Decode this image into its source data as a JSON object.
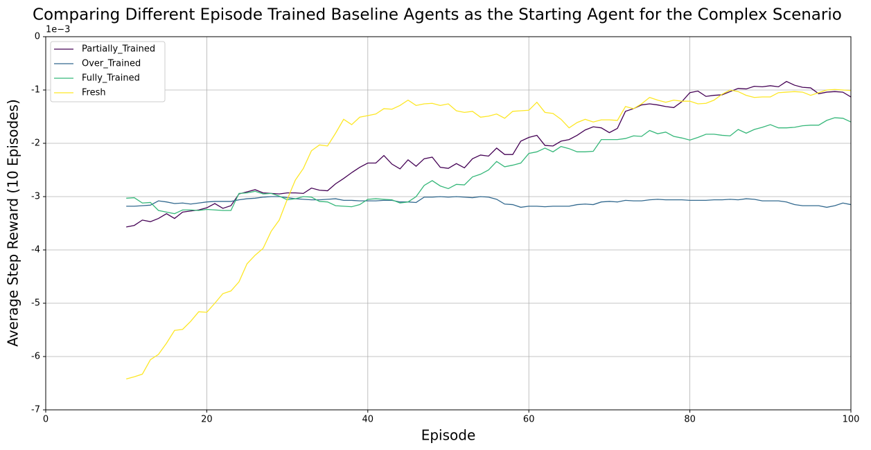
{
  "chart_data": {
    "type": "line",
    "title": "Comparing Different Episode Trained Baseline Agents as the Starting Agent for the Complex Scenario",
    "x_label": "Episode",
    "y_label": "Average Step Reward (10 Episodes)",
    "y_offset_label": "1e−3",
    "x": [
      10,
      11,
      12,
      13,
      14,
      15,
      16,
      17,
      18,
      19,
      20,
      21,
      22,
      23,
      24,
      25,
      26,
      27,
      28,
      29,
      30,
      31,
      32,
      33,
      34,
      35,
      36,
      37,
      38,
      39,
      40,
      41,
      42,
      43,
      44,
      45,
      46,
      47,
      48,
      49,
      50,
      51,
      52,
      53,
      54,
      55,
      56,
      57,
      58,
      59,
      60,
      61,
      62,
      63,
      64,
      65,
      66,
      67,
      68,
      69,
      70,
      71,
      72,
      73,
      74,
      75,
      76,
      77,
      78,
      79,
      80,
      81,
      82,
      83,
      84,
      85,
      86,
      87,
      88,
      89,
      90,
      91,
      92,
      93,
      94,
      95,
      96,
      97,
      98,
      99,
      100
    ],
    "series": [
      {
        "name": "Partially_Trained",
        "color": "#440154",
        "values": [
          -3.57,
          -3.54,
          -3.44,
          -3.47,
          -3.41,
          -3.32,
          -3.41,
          -3.29,
          -3.27,
          -3.25,
          -3.21,
          -3.13,
          -3.22,
          -3.17,
          -2.95,
          -2.91,
          -2.87,
          -2.93,
          -2.94,
          -2.95,
          -2.93,
          -2.93,
          -2.94,
          -2.84,
          -2.88,
          -2.89,
          -2.76,
          -2.66,
          -2.55,
          -2.45,
          -2.37,
          -2.37,
          -2.23,
          -2.39,
          -2.48,
          -2.31,
          -2.43,
          -2.29,
          -2.26,
          -2.45,
          -2.47,
          -2.38,
          -2.46,
          -2.29,
          -2.22,
          -2.24,
          -2.09,
          -2.21,
          -2.21,
          -1.96,
          -1.89,
          -1.85,
          -2.04,
          -2.05,
          -1.96,
          -1.93,
          -1.85,
          -1.75,
          -1.69,
          -1.71,
          -1.8,
          -1.72,
          -1.4,
          -1.35,
          -1.28,
          -1.26,
          -1.28,
          -1.31,
          -1.33,
          -1.22,
          -1.05,
          -1.02,
          -1.12,
          -1.1,
          -1.09,
          -1.03,
          -0.97,
          -0.98,
          -0.93,
          -0.94,
          -0.92,
          -0.94,
          -0.84,
          -0.91,
          -0.95,
          -0.96,
          -1.07,
          -1.04,
          -1.03,
          -1.04,
          -1.13
        ]
      },
      {
        "name": "Over_Trained",
        "color": "#31688e",
        "values": [
          -3.18,
          -3.18,
          -3.17,
          -3.16,
          -3.08,
          -3.1,
          -3.13,
          -3.12,
          -3.14,
          -3.12,
          -3.1,
          -3.09,
          -3.09,
          -3.09,
          -3.06,
          -3.04,
          -3.03,
          -3.01,
          -3.0,
          -3.0,
          -3.02,
          -3.04,
          -3.05,
          -3.06,
          -3.06,
          -3.05,
          -3.04,
          -3.07,
          -3.07,
          -3.08,
          -3.08,
          -3.08,
          -3.07,
          -3.07,
          -3.1,
          -3.1,
          -3.11,
          -3.01,
          -3.01,
          -3.0,
          -3.01,
          -3.0,
          -3.01,
          -3.02,
          -3.0,
          -3.01,
          -3.05,
          -3.14,
          -3.15,
          -3.2,
          -3.18,
          -3.18,
          -3.19,
          -3.18,
          -3.18,
          -3.18,
          -3.15,
          -3.14,
          -3.15,
          -3.1,
          -3.09,
          -3.1,
          -3.07,
          -3.08,
          -3.08,
          -3.06,
          -3.05,
          -3.06,
          -3.06,
          -3.06,
          -3.07,
          -3.07,
          -3.07,
          -3.06,
          -3.06,
          -3.05,
          -3.06,
          -3.04,
          -3.05,
          -3.08,
          -3.08,
          -3.08,
          -3.1,
          -3.15,
          -3.17,
          -3.17,
          -3.17,
          -3.2,
          -3.17,
          -3.12,
          -3.15
        ]
      },
      {
        "name": "Fully_Trained",
        "color": "#35b779",
        "values": [
          -3.03,
          -3.02,
          -3.12,
          -3.11,
          -3.26,
          -3.29,
          -3.32,
          -3.25,
          -3.25,
          -3.26,
          -3.24,
          -3.25,
          -3.26,
          -3.26,
          -2.94,
          -2.93,
          -2.9,
          -2.95,
          -2.94,
          -2.99,
          -3.06,
          -3.04,
          -3.0,
          -3.01,
          -3.09,
          -3.1,
          -3.17,
          -3.18,
          -3.19,
          -3.15,
          -3.05,
          -3.04,
          -3.05,
          -3.06,
          -3.12,
          -3.1,
          -3.0,
          -2.79,
          -2.7,
          -2.8,
          -2.85,
          -2.77,
          -2.78,
          -2.63,
          -2.58,
          -2.5,
          -2.34,
          -2.44,
          -2.41,
          -2.37,
          -2.19,
          -2.16,
          -2.09,
          -2.16,
          -2.06,
          -2.1,
          -2.16,
          -2.16,
          -2.15,
          -1.93,
          -1.93,
          -1.93,
          -1.91,
          -1.86,
          -1.87,
          -1.76,
          -1.82,
          -1.79,
          -1.87,
          -1.9,
          -1.94,
          -1.89,
          -1.83,
          -1.83,
          -1.85,
          -1.86,
          -1.74,
          -1.81,
          -1.74,
          -1.7,
          -1.65,
          -1.71,
          -1.71,
          -1.7,
          -1.67,
          -1.66,
          -1.66,
          -1.57,
          -1.52,
          -1.53,
          -1.6
        ]
      },
      {
        "name": "Fresh",
        "color": "#fde725",
        "values": [
          -6.42,
          -6.38,
          -6.33,
          -6.06,
          -5.96,
          -5.75,
          -5.51,
          -5.49,
          -5.34,
          -5.16,
          -5.17,
          -5.0,
          -4.82,
          -4.77,
          -4.6,
          -4.26,
          -4.1,
          -3.97,
          -3.65,
          -3.44,
          -3.05,
          -2.69,
          -2.47,
          -2.14,
          -2.03,
          -2.05,
          -1.81,
          -1.55,
          -1.65,
          -1.51,
          -1.48,
          -1.45,
          -1.35,
          -1.36,
          -1.29,
          -1.19,
          -1.29,
          -1.26,
          -1.25,
          -1.29,
          -1.26,
          -1.39,
          -1.42,
          -1.4,
          -1.51,
          -1.49,
          -1.45,
          -1.53,
          -1.4,
          -1.39,
          -1.38,
          -1.23,
          -1.42,
          -1.44,
          -1.55,
          -1.71,
          -1.61,
          -1.55,
          -1.6,
          -1.56,
          -1.56,
          -1.57,
          -1.31,
          -1.35,
          -1.26,
          -1.14,
          -1.19,
          -1.23,
          -1.19,
          -1.21,
          -1.21,
          -1.26,
          -1.25,
          -1.19,
          -1.08,
          -1.0,
          -1.03,
          -1.1,
          -1.14,
          -1.13,
          -1.13,
          -1.05,
          -1.04,
          -1.03,
          -1.04,
          -1.1,
          -1.05,
          -1.0,
          -0.99,
          -1.0,
          -1.01
        ]
      }
    ],
    "xlim": [
      0,
      100
    ],
    "xticks": [
      0,
      20,
      40,
      60,
      80,
      100
    ],
    "ylim": [
      -7,
      0
    ],
    "yticks": [
      0,
      -1,
      -2,
      -3,
      -4,
      -5,
      -6,
      -7
    ],
    "grid": true,
    "legend": "upper left"
  }
}
